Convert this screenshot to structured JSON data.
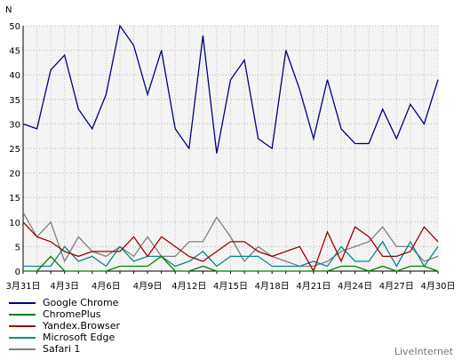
{
  "chart_data": {
    "type": "line",
    "ylabel": "N",
    "ylim": [
      0,
      50
    ],
    "yticks": [
      0,
      5,
      10,
      15,
      20,
      25,
      30,
      35,
      40,
      45,
      50
    ],
    "grid": true,
    "categories": [
      "3月31日",
      "4月1日",
      "4月2日",
      "4月3日",
      "4月4日",
      "4月5日",
      "4月6日",
      "4月7日",
      "4月8日",
      "4月9日",
      "4月10日",
      "4月11日",
      "4月12日",
      "4月13日",
      "4月14日",
      "4月15日",
      "4月16日",
      "4月17日",
      "4月18日",
      "4月19日",
      "4月20日",
      "4月21日",
      "4月22日",
      "4月23日",
      "4月24日",
      "4月25日",
      "4月26日",
      "4月27日",
      "4月28日",
      "4月29日",
      "4月30日"
    ],
    "x_tick_labels": [
      "3月31日",
      "4月3日",
      "4月6日",
      "4月9日",
      "4月12日",
      "4月15日",
      "4月18日",
      "4月21日",
      "4月24日",
      "4月27日",
      "4月30日"
    ],
    "x_tick_indices": [
      0,
      3,
      6,
      9,
      12,
      15,
      18,
      21,
      24,
      27,
      30
    ],
    "series": [
      {
        "name": "Google Chrome",
        "color": "#000080",
        "values": [
          30,
          29,
          41,
          44,
          33,
          29,
          36,
          50,
          46,
          36,
          45,
          29,
          25,
          48,
          24,
          39,
          43,
          27,
          25,
          45,
          37,
          27,
          39,
          29,
          26,
          26,
          33,
          27,
          34,
          30,
          39
        ]
      },
      {
        "name": "ChromePlus",
        "color": "#008000",
        "values": [
          0,
          0,
          3,
          0,
          0,
          0,
          0,
          1,
          1,
          1,
          3,
          0,
          0,
          1,
          0,
          0,
          0,
          0,
          0,
          0,
          0,
          0,
          0,
          1,
          1,
          0,
          1,
          0,
          1,
          1,
          0
        ]
      },
      {
        "name": "Yandex.Browser",
        "color": "#a00000",
        "values": [
          10,
          7,
          6,
          4,
          3,
          4,
          4,
          4,
          7,
          3,
          7,
          5,
          3,
          2,
          4,
          6,
          6,
          4,
          3,
          4,
          5,
          0,
          8,
          2,
          9,
          7,
          3,
          3,
          4,
          9,
          6
        ]
      },
      {
        "name": "Microsoft Edge",
        "color": "#008b8b",
        "values": [
          1,
          1,
          1,
          5,
          2,
          3,
          1,
          5,
          2,
          3,
          3,
          1,
          2,
          4,
          1,
          3,
          3,
          3,
          1,
          1,
          1,
          2,
          1,
          5,
          2,
          2,
          6,
          1,
          6,
          1,
          5
        ]
      },
      {
        "name": "Safari 1",
        "color": "#808080",
        "values": [
          12,
          7,
          10,
          2,
          7,
          4,
          3,
          5,
          3,
          7,
          3,
          3,
          6,
          6,
          11,
          7,
          2,
          5,
          3,
          2,
          1,
          1,
          2,
          4,
          5,
          6,
          9,
          5,
          5,
          2,
          3
        ]
      }
    ]
  },
  "legend": [
    {
      "label": "Google Chrome",
      "color": "#000080"
    },
    {
      "label": "ChromePlus",
      "color": "#008000"
    },
    {
      "label": "Yandex.Browser",
      "color": "#a00000"
    },
    {
      "label": "Microsoft Edge",
      "color": "#008b8b"
    },
    {
      "label": "Safari 1",
      "color": "#808080"
    }
  ],
  "source": "LiveInternet"
}
